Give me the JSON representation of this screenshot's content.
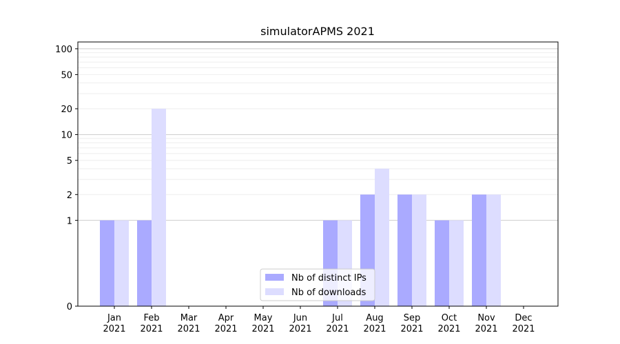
{
  "chart_data": {
    "type": "bar",
    "title": "simulatorAPMS 2021",
    "xlabel": "",
    "ylabel": "",
    "yscale": "symlog",
    "ylim": [
      0,
      120
    ],
    "y_ticks": [
      0,
      1,
      2,
      5,
      10,
      20,
      50,
      100
    ],
    "y_tick_labels": [
      "0",
      "1",
      "2",
      "5",
      "10",
      "20",
      "50",
      "100"
    ],
    "categories": [
      {
        "month": "Jan",
        "year": "2021"
      },
      {
        "month": "Feb",
        "year": "2021"
      },
      {
        "month": "Mar",
        "year": "2021"
      },
      {
        "month": "Apr",
        "year": "2021"
      },
      {
        "month": "May",
        "year": "2021"
      },
      {
        "month": "Jun",
        "year": "2021"
      },
      {
        "month": "Jul",
        "year": "2021"
      },
      {
        "month": "Aug",
        "year": "2021"
      },
      {
        "month": "Sep",
        "year": "2021"
      },
      {
        "month": "Oct",
        "year": "2021"
      },
      {
        "month": "Nov",
        "year": "2021"
      },
      {
        "month": "Dec",
        "year": "2021"
      }
    ],
    "series": [
      {
        "name": "Nb of distinct IPs",
        "color": "#aaaaff",
        "values": [
          1,
          1,
          0,
          0,
          0,
          0,
          1,
          2,
          2,
          1,
          2,
          0
        ]
      },
      {
        "name": "Nb of downloads",
        "color": "#ddddff",
        "values": [
          1,
          20,
          0,
          0,
          0,
          0,
          1,
          4,
          2,
          1,
          2,
          0
        ]
      }
    ],
    "grid": true,
    "legend_position": "bottom-center"
  }
}
